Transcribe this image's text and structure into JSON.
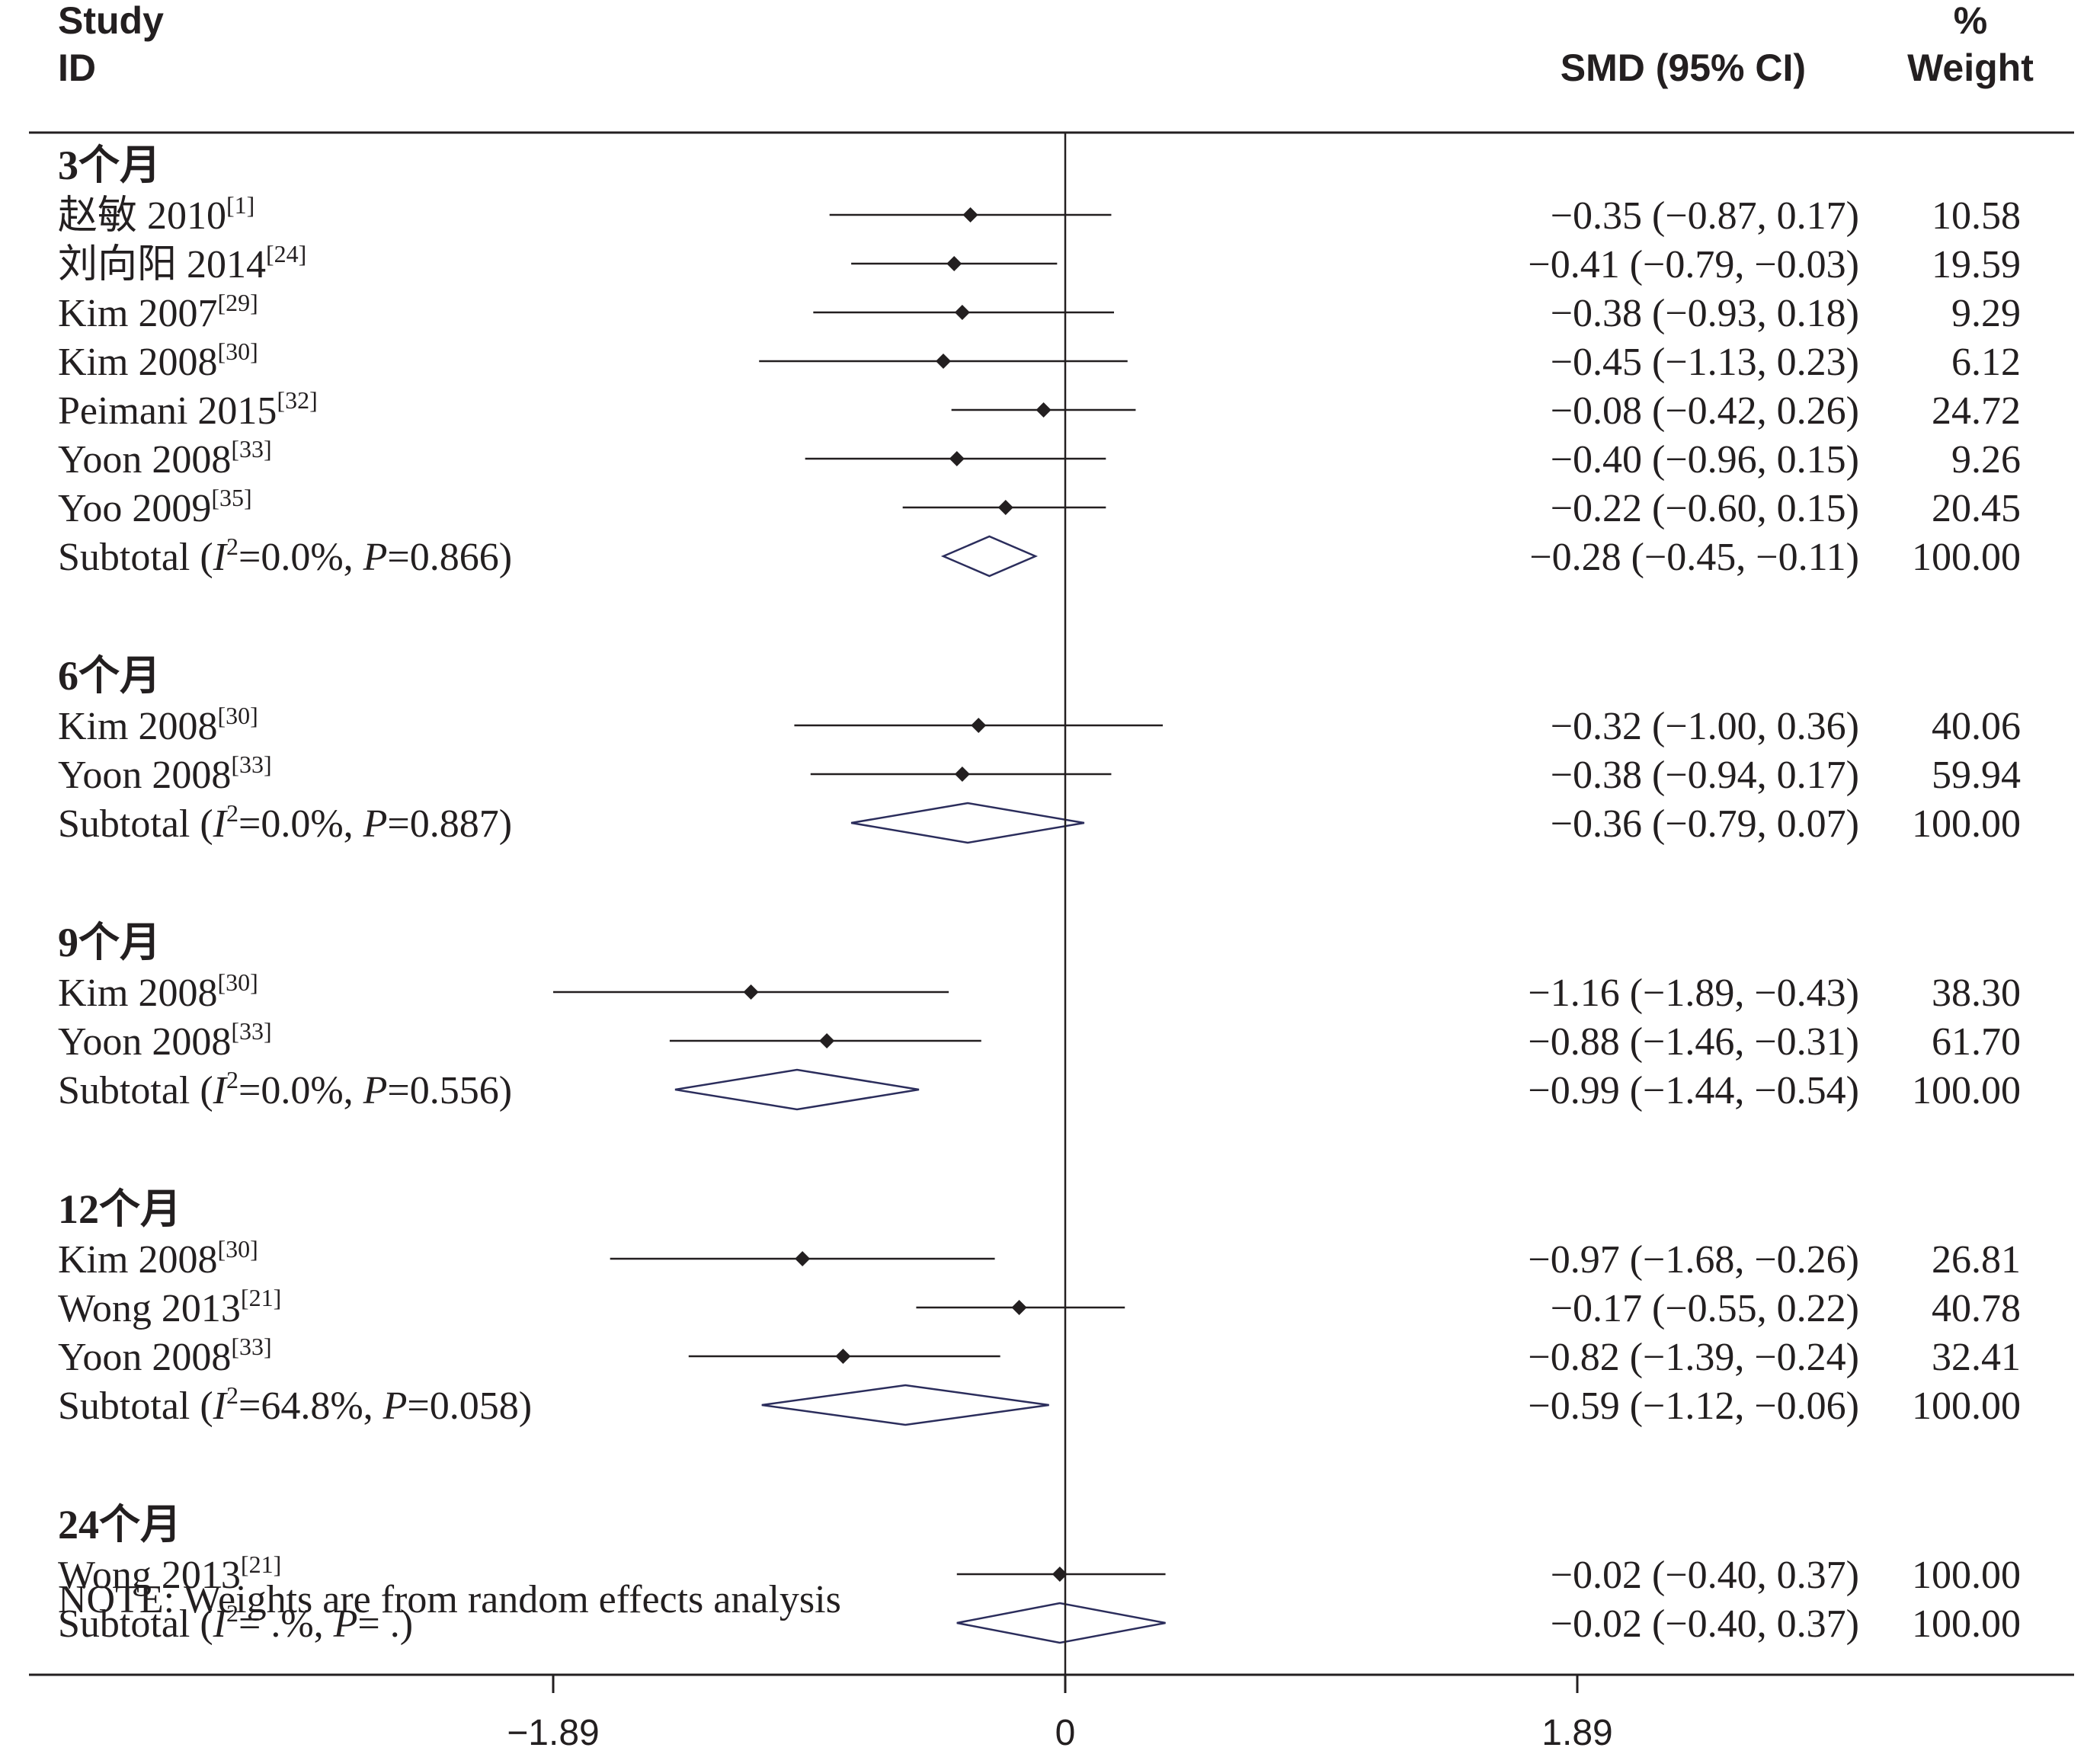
{
  "chart_data": {
    "type": "forest",
    "header": {
      "col1": [
        "Study",
        "ID"
      ],
      "col2": "SMD (95% CI)",
      "col3": [
        "%",
        "Weight"
      ]
    },
    "xaxis": {
      "ticks": [
        -1.89,
        0,
        1.89
      ],
      "tick_labels": [
        "−1.89",
        "0",
        "1.89"
      ],
      "range": [
        -1.89,
        1.89
      ],
      "reference_line": 0
    },
    "groups": [
      {
        "label": "3个月",
        "studies": [
          {
            "name": "赵敏 2010",
            "ref": "[1]",
            "smd": -0.35,
            "lo": -0.87,
            "hi": 0.17,
            "ci": "−0.35 (−0.87, 0.17)",
            "weight": "10.58"
          },
          {
            "name": "刘向阳 2014",
            "ref": "[24]",
            "smd": -0.41,
            "lo": -0.79,
            "hi": -0.03,
            "ci": "−0.41 (−0.79, −0.03)",
            "weight": "19.59"
          },
          {
            "name": "Kim 2007",
            "ref": "[29]",
            "smd": -0.38,
            "lo": -0.93,
            "hi": 0.18,
            "ci": "−0.38 (−0.93, 0.18)",
            "weight": "9.29"
          },
          {
            "name": "Kim 2008",
            "ref": "[30]",
            "smd": -0.45,
            "lo": -1.13,
            "hi": 0.23,
            "ci": "−0.45 (−1.13, 0.23)",
            "weight": "6.12"
          },
          {
            "name": "Peimani 2015",
            "ref": "[32]",
            "smd": -0.08,
            "lo": -0.42,
            "hi": 0.26,
            "ci": "−0.08 (−0.42, 0.26)",
            "weight": "24.72"
          },
          {
            "name": "Yoon 2008",
            "ref": "[33]",
            "smd": -0.4,
            "lo": -0.96,
            "hi": 0.15,
            "ci": "−0.40 (−0.96, 0.15)",
            "weight": "9.26"
          },
          {
            "name": "Yoo 2009",
            "ref": "[35]",
            "smd": -0.22,
            "lo": -0.6,
            "hi": 0.15,
            "ci": "−0.22 (−0.60, 0.15)",
            "weight": "20.45"
          }
        ],
        "subtotal": {
          "i2": "0.0%",
          "p": "0.866",
          "smd": -0.28,
          "lo": -0.45,
          "hi": -0.11,
          "ci": "−0.28 (−0.45, −0.11)",
          "weight": "100.00"
        }
      },
      {
        "label": "6个月",
        "studies": [
          {
            "name": "Kim 2008",
            "ref": "[30]",
            "smd": -0.32,
            "lo": -1.0,
            "hi": 0.36,
            "ci": "−0.32 (−1.00, 0.36)",
            "weight": "40.06"
          },
          {
            "name": "Yoon 2008",
            "ref": "[33]",
            "smd": -0.38,
            "lo": -0.94,
            "hi": 0.17,
            "ci": "−0.38 (−0.94, 0.17)",
            "weight": "59.94"
          }
        ],
        "subtotal": {
          "i2": "0.0%",
          "p": "0.887",
          "smd": -0.36,
          "lo": -0.79,
          "hi": 0.07,
          "ci": "−0.36 (−0.79, 0.07)",
          "weight": "100.00"
        }
      },
      {
        "label": "9个月",
        "studies": [
          {
            "name": "Kim 2008",
            "ref": "[30]",
            "smd": -1.16,
            "lo": -1.89,
            "hi": -0.43,
            "ci": "−1.16 (−1.89, −0.43)",
            "weight": "38.30"
          },
          {
            "name": "Yoon 2008",
            "ref": "[33]",
            "smd": -0.88,
            "lo": -1.46,
            "hi": -0.31,
            "ci": "−0.88 (−1.46, −0.31)",
            "weight": "61.70"
          }
        ],
        "subtotal": {
          "i2": "0.0%",
          "p": "0.556",
          "smd": -0.99,
          "lo": -1.44,
          "hi": -0.54,
          "ci": "−0.99 (−1.44, −0.54)",
          "weight": "100.00"
        }
      },
      {
        "label": "12个月",
        "studies": [
          {
            "name": "Kim 2008",
            "ref": "[30]",
            "smd": -0.97,
            "lo": -1.68,
            "hi": -0.26,
            "ci": "−0.97 (−1.68, −0.26)",
            "weight": "26.81"
          },
          {
            "name": "Wong 2013",
            "ref": "[21]",
            "smd": -0.17,
            "lo": -0.55,
            "hi": 0.22,
            "ci": "−0.17 (−0.55, 0.22)",
            "weight": "40.78"
          },
          {
            "name": "Yoon 2008",
            "ref": "[33]",
            "smd": -0.82,
            "lo": -1.39,
            "hi": -0.24,
            "ci": "−0.82 (−1.39, −0.24)",
            "weight": "32.41"
          }
        ],
        "subtotal": {
          "i2": "64.8%",
          "p": "0.058",
          "smd": -0.59,
          "lo": -1.12,
          "hi": -0.06,
          "ci": "−0.59 (−1.12, −0.06)",
          "weight": "100.00"
        }
      },
      {
        "label": "24个月",
        "studies": [
          {
            "name": "Wong 2013",
            "ref": "[21]",
            "smd": -0.02,
            "lo": -0.4,
            "hi": 0.37,
            "ci": "−0.02 (−0.40, 0.37)",
            "weight": "100.00"
          }
        ],
        "subtotal": {
          "i2": " .%",
          "p": " .",
          "smd": -0.02,
          "lo": -0.4,
          "hi": 0.37,
          "ci": "−0.02 (−0.40, 0.37)",
          "weight": "100.00"
        }
      }
    ],
    "note": "NOTE: Weights are from random effects analysis",
    "colors": {
      "text": "#231f20",
      "diamond": "#2b2d5c"
    }
  }
}
